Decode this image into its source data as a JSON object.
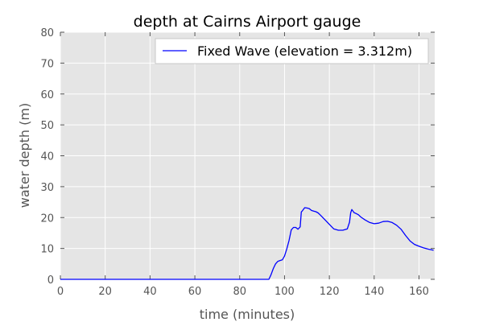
{
  "chart_data": {
    "type": "line",
    "title": "depth at Cairns Airport gauge",
    "xlabel": "time (minutes)",
    "ylabel": "water depth (m)",
    "xlim": [
      0,
      167
    ],
    "ylim": [
      0,
      80
    ],
    "xticks": [
      0,
      20,
      40,
      60,
      80,
      100,
      120,
      140,
      160
    ],
    "yticks": [
      0,
      10,
      20,
      30,
      40,
      50,
      60,
      70,
      80
    ],
    "grid": true,
    "legend_position": "top-right",
    "colors": {
      "background": "#e5e5e5",
      "grid": "#ffffff",
      "line": "#0000ff"
    },
    "series": [
      {
        "name": "Fixed Wave (elevation = 3.312m)",
        "x": [
          0,
          10,
          20,
          30,
          40,
          50,
          60,
          70,
          80,
          90,
          93,
          94,
          95,
          96,
          97,
          98,
          99,
          100,
          101,
          102,
          103,
          104,
          105,
          106,
          107,
          107.5,
          108,
          109,
          110,
          111,
          112,
          113,
          114,
          115,
          116,
          118,
          120,
          122,
          124,
          126,
          128,
          129,
          129.5,
          130,
          131,
          132,
          133,
          134,
          136,
          138,
          140,
          142,
          144,
          146,
          148,
          150,
          152,
          154,
          156,
          158,
          160,
          162,
          164,
          166.5
        ],
        "y": [
          0,
          0,
          0,
          0,
          0,
          0,
          0,
          0,
          0,
          0,
          0,
          1.5,
          3.5,
          5,
          5.8,
          6.1,
          6.3,
          7.5,
          9.8,
          12.5,
          16,
          16.8,
          16.8,
          16.2,
          17,
          21.8,
          22.2,
          23.2,
          23.1,
          22.9,
          22.3,
          22.1,
          21.9,
          21.5,
          20.8,
          19.3,
          17.8,
          16.3,
          15.9,
          15.9,
          16.3,
          18.5,
          21.5,
          22.6,
          21.6,
          21.3,
          20.9,
          20.2,
          19.2,
          18.4,
          18,
          18.2,
          18.7,
          18.8,
          18.4,
          17.5,
          16.2,
          14.2,
          12.4,
          11.3,
          10.7,
          10.2,
          9.8,
          9.4
        ]
      }
    ]
  }
}
